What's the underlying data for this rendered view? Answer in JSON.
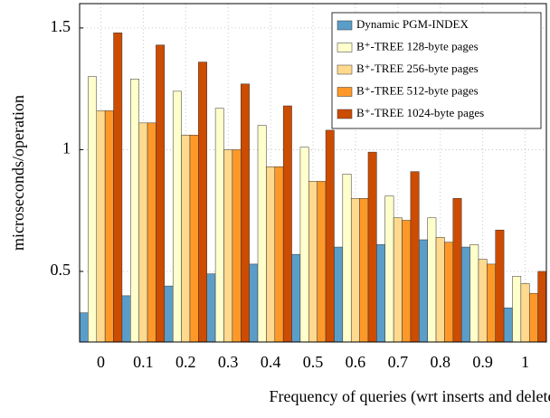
{
  "chart_data": {
    "type": "bar",
    "x_label": "Frequency of queries (wrt inserts and deletes)",
    "y_label": "microseconds/operation",
    "categories": [
      "0",
      "0.1",
      "0.2",
      "0.3",
      "0.4",
      "0.5",
      "0.6",
      "0.7",
      "0.8",
      "0.9",
      "1"
    ],
    "series": [
      {
        "name": "Dynamic PGM-INDEX",
        "color": "#5b9dc9",
        "values": [
          0.33,
          0.4,
          0.44,
          0.49,
          0.53,
          0.57,
          0.6,
          0.61,
          0.63,
          0.6,
          0.35
        ]
      },
      {
        "name": "B⁺-TREE 128-byte pages",
        "color": "#ffffcc",
        "values": [
          1.3,
          1.29,
          1.24,
          1.17,
          1.1,
          1.01,
          0.9,
          0.81,
          0.72,
          0.61,
          0.48
        ]
      },
      {
        "name": "B⁺-TREE 256-byte pages",
        "color": "#fed98e",
        "values": [
          1.16,
          1.11,
          1.06,
          1.0,
          0.93,
          0.87,
          0.8,
          0.72,
          0.64,
          0.55,
          0.45
        ]
      },
      {
        "name": "B⁺-TREE 512-byte pages",
        "color": "#fe9929",
        "values": [
          1.16,
          1.11,
          1.06,
          1.0,
          0.93,
          0.87,
          0.8,
          0.71,
          0.62,
          0.53,
          0.41
        ]
      },
      {
        "name": "B⁺-TREE 1024-byte pages",
        "color": "#cc4c02",
        "values": [
          1.48,
          1.43,
          1.36,
          1.27,
          1.18,
          1.08,
          0.99,
          0.91,
          0.8,
          0.67,
          0.5
        ]
      }
    ],
    "ylim": [
      0.21,
      1.6
    ],
    "yticks": [
      0.5,
      1,
      1.5
    ],
    "grid": true,
    "legend": "top-right"
  }
}
